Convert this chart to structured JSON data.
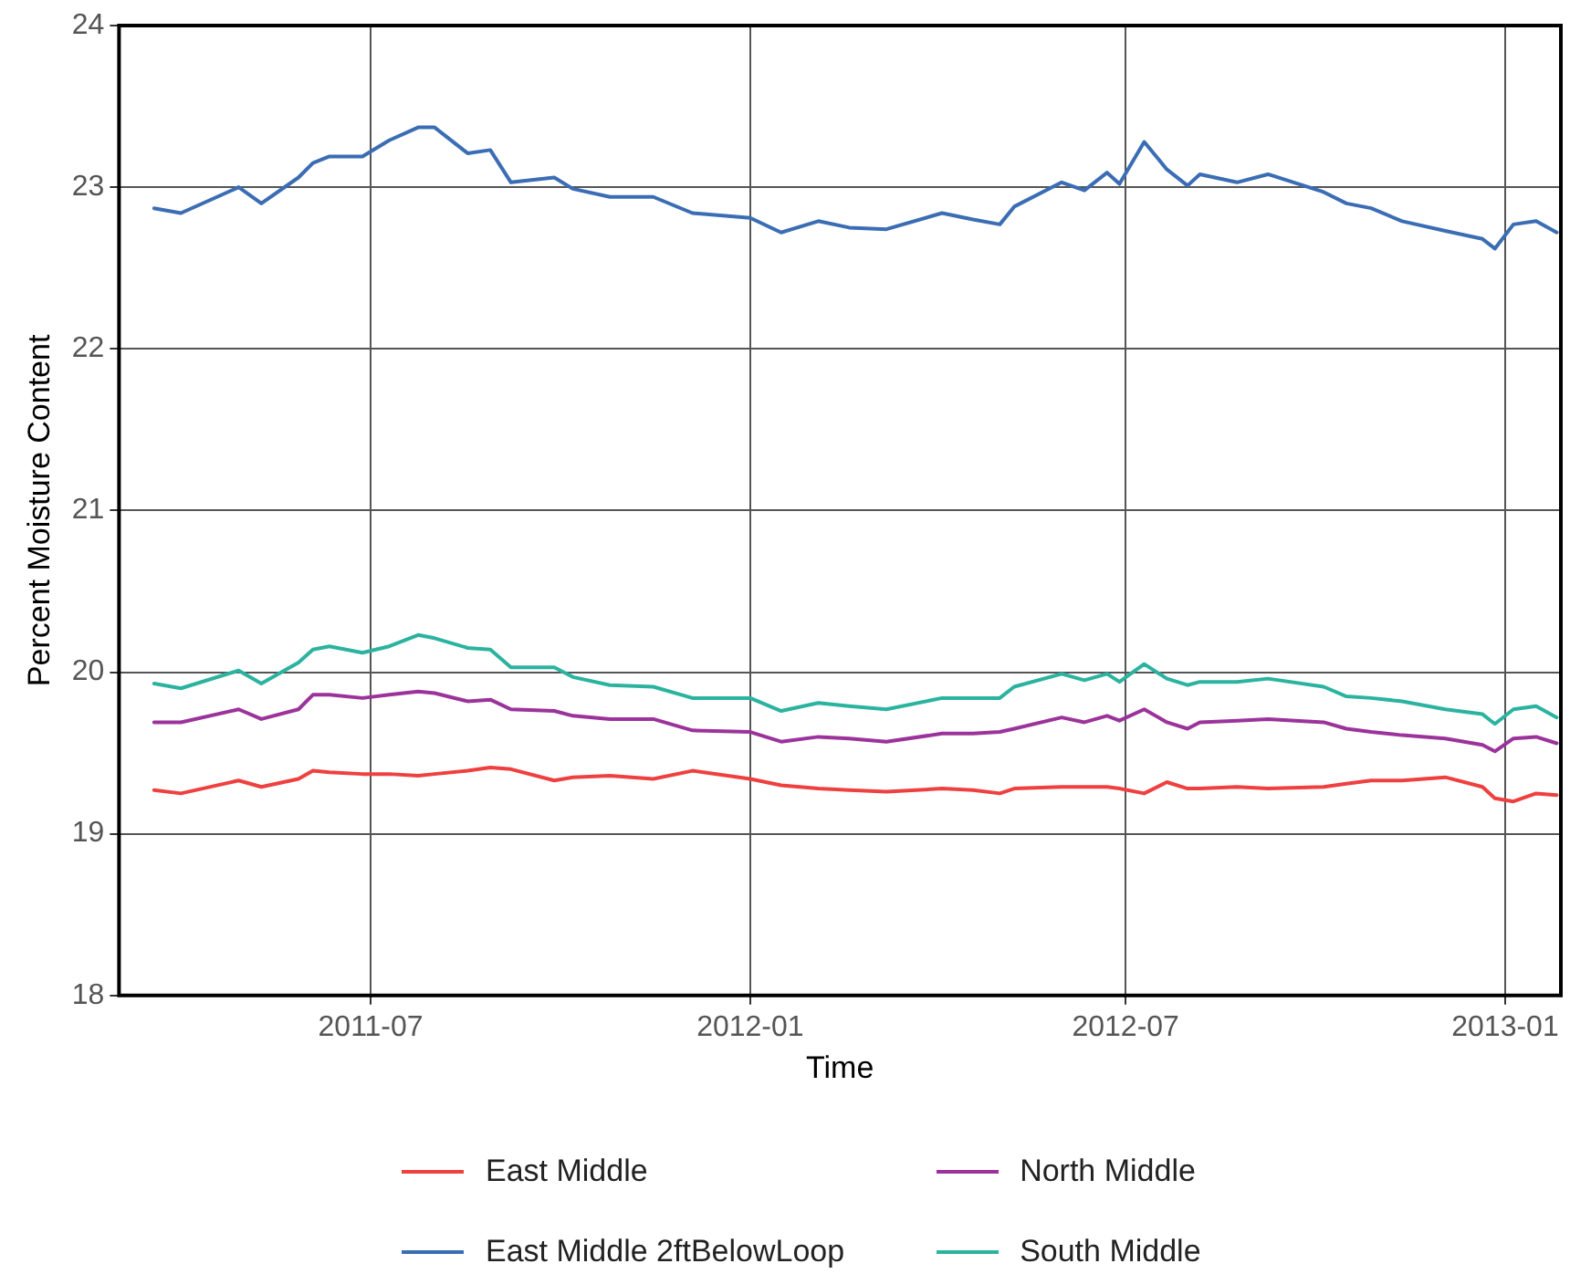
{
  "chart_data": {
    "type": "line",
    "xlabel": "Time",
    "ylabel": "Percent Moisture Content",
    "x": [
      "2011-03-18",
      "2011-03-31",
      "2011-04-28",
      "2011-05-09",
      "2011-05-27",
      "2011-06-03",
      "2011-06-11",
      "2011-06-27",
      "2011-07-10",
      "2011-07-24",
      "2011-08-01",
      "2011-08-17",
      "2011-08-28",
      "2011-09-07",
      "2011-09-28",
      "2011-10-07",
      "2011-10-25",
      "2011-11-15",
      "2011-12-04",
      "2012-01-01",
      "2012-01-16",
      "2012-02-03",
      "2012-02-18",
      "2012-03-07",
      "2012-04-03",
      "2012-04-18",
      "2012-05-01",
      "2012-05-08",
      "2012-05-31",
      "2012-06-11",
      "2012-06-22",
      "2012-06-28",
      "2012-07-10",
      "2012-07-21",
      "2012-07-31",
      "2012-08-06",
      "2012-08-24",
      "2012-09-08",
      "2012-10-05",
      "2012-10-16",
      "2012-10-28",
      "2012-11-12",
      "2012-12-03",
      "2012-12-21",
      "2012-12-27",
      "2013-01-05",
      "2013-01-16",
      "2013-01-26"
    ],
    "series": [
      {
        "name": "East Middle",
        "color": "#ef4040",
        "values": [
          19.27,
          19.25,
          19.33,
          19.29,
          19.34,
          19.39,
          19.38,
          19.37,
          19.37,
          19.36,
          19.37,
          19.39,
          19.41,
          19.4,
          19.33,
          19.35,
          19.36,
          19.34,
          19.39,
          19.34,
          19.3,
          19.28,
          19.27,
          19.26,
          19.28,
          19.27,
          19.25,
          19.28,
          19.29,
          19.29,
          19.29,
          19.28,
          19.25,
          19.32,
          19.28,
          19.28,
          19.29,
          19.28,
          19.29,
          19.31,
          19.33,
          19.33,
          19.35,
          19.29,
          19.22,
          19.2,
          19.25,
          19.24
        ]
      },
      {
        "name": "East Middle 2ftBelowLoop",
        "color": "#3b6db4",
        "values": [
          22.87,
          22.84,
          23.0,
          22.9,
          23.06,
          23.15,
          23.19,
          23.19,
          23.29,
          23.37,
          23.37,
          23.21,
          23.23,
          23.03,
          23.06,
          22.99,
          22.94,
          22.94,
          22.84,
          22.81,
          22.72,
          22.79,
          22.75,
          22.74,
          22.84,
          22.8,
          22.77,
          22.88,
          23.03,
          22.98,
          23.09,
          23.02,
          23.28,
          23.11,
          23.01,
          23.08,
          23.03,
          23.08,
          22.97,
          22.9,
          22.87,
          22.79,
          22.73,
          22.68,
          22.62,
          22.77,
          22.79,
          22.72
        ]
      },
      {
        "name": "North Middle",
        "color": "#9b339b",
        "values": [
          19.69,
          19.69,
          19.77,
          19.71,
          19.77,
          19.86,
          19.86,
          19.84,
          19.86,
          19.88,
          19.87,
          19.82,
          19.83,
          19.77,
          19.76,
          19.73,
          19.71,
          19.71,
          19.64,
          19.63,
          19.57,
          19.6,
          19.59,
          19.57,
          19.62,
          19.62,
          19.63,
          19.65,
          19.72,
          19.69,
          19.73,
          19.7,
          19.77,
          19.69,
          19.65,
          19.69,
          19.7,
          19.71,
          19.69,
          19.65,
          19.63,
          19.61,
          19.59,
          19.55,
          19.51,
          19.59,
          19.6,
          19.56
        ]
      },
      {
        "name": "South Middle",
        "color": "#2bb3a0",
        "values": [
          19.93,
          19.9,
          20.01,
          19.93,
          20.06,
          20.14,
          20.16,
          20.12,
          20.16,
          20.23,
          20.21,
          20.15,
          20.14,
          20.03,
          20.03,
          19.97,
          19.92,
          19.91,
          19.84,
          19.84,
          19.76,
          19.81,
          19.79,
          19.77,
          19.84,
          19.84,
          19.84,
          19.91,
          19.99,
          19.95,
          19.99,
          19.94,
          20.05,
          19.96,
          19.92,
          19.94,
          19.94,
          19.96,
          19.91,
          19.85,
          19.84,
          19.82,
          19.77,
          19.74,
          19.68,
          19.77,
          19.79,
          19.72
        ]
      }
    ],
    "xlim": [
      "2011-03-01",
      "2013-01-28"
    ],
    "xticks": [
      {
        "value": "2011-07-01",
        "label": "2011-07"
      },
      {
        "value": "2012-01-01",
        "label": "2012-01"
      },
      {
        "value": "2012-07-01",
        "label": "2012-07"
      },
      {
        "value": "2013-01-01",
        "label": "2013-01"
      }
    ],
    "ylim": [
      18,
      24
    ],
    "yticks": [
      18,
      19,
      20,
      21,
      22,
      23,
      24
    ],
    "grid": true,
    "legend": "bottom",
    "marker": "none",
    "line_style": "solid"
  }
}
